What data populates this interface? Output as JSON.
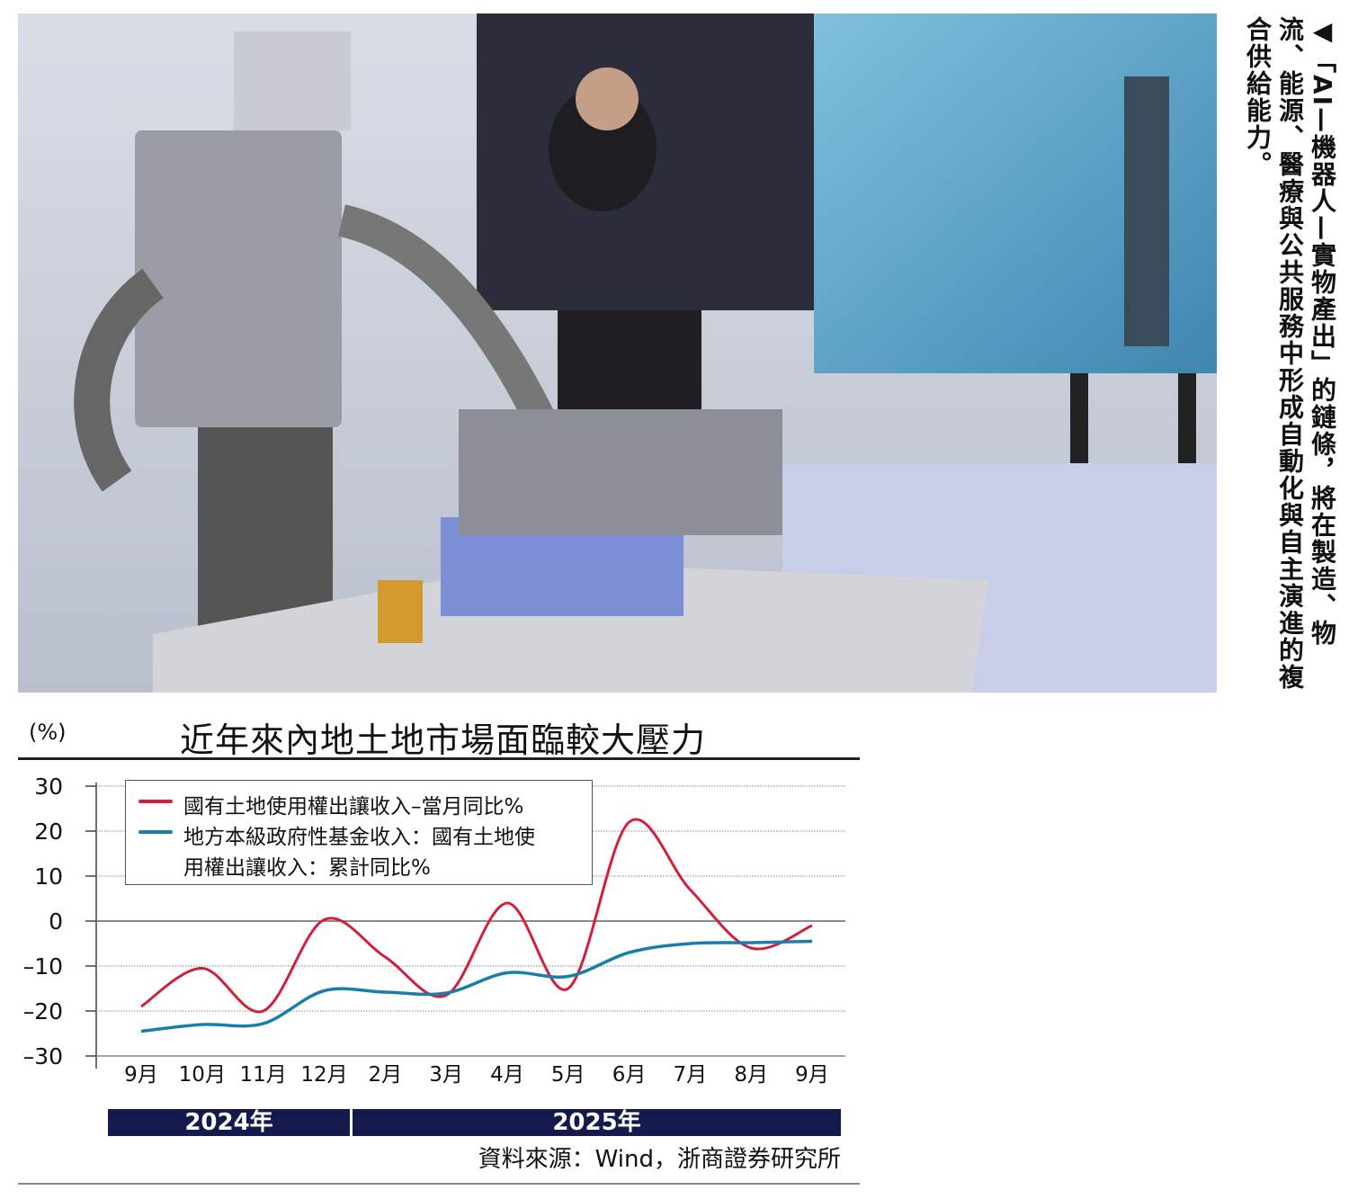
{
  "caption": "◀「AI—機器人—實物產出」的鏈條，將在製造、物流、能源、醫療與公共服務中形成自動化與自主演進的複合供給能力。",
  "chart_data": {
    "type": "line",
    "title": "近年來內地土地市場面臨較大壓力",
    "ylabel": "(%)",
    "ylim": [
      -30,
      30
    ],
    "yticks": [
      30,
      20,
      10,
      0,
      -10,
      -20,
      -30
    ],
    "ytick_labels": [
      "30",
      "20",
      "10",
      "0",
      "–10",
      "–20",
      "–30"
    ],
    "grid": "dotted horizontal",
    "legend": "top-left",
    "categories": [
      "9月",
      "10月",
      "11月",
      "12月",
      "2月",
      "3月",
      "4月",
      "5月",
      "6月",
      "7月",
      "8月",
      "9月"
    ],
    "year_groups": [
      {
        "label": "2024年",
        "months": 4
      },
      {
        "label": "2025年",
        "months": 8
      }
    ],
    "series": [
      {
        "name": "國有土地使用權出讓收入–當月同比%",
        "color": "#d0203a",
        "values": [
          -19,
          -10.5,
          -20,
          0.3,
          -8,
          -16.5,
          4,
          -15,
          22,
          7,
          -6,
          -1
        ]
      },
      {
        "name": "地方本級政府性基金收入：國有土地使用權出讓收入：累計同比%",
        "color": "#1a7fa8",
        "values": [
          -24.5,
          -23,
          -22.8,
          -15.5,
          -15.8,
          -16,
          -11.5,
          -12.3,
          -7,
          -5,
          -4.8,
          -4.5
        ]
      }
    ],
    "legend_lines": [
      [
        "國有土地使用權出讓收入–當月同比%"
      ],
      [
        "地方本級政府性基金收入：國有土地使",
        "用權出讓收入：累計同比%"
      ]
    ],
    "source": "資料來源：Wind，浙商證券研究所"
  }
}
